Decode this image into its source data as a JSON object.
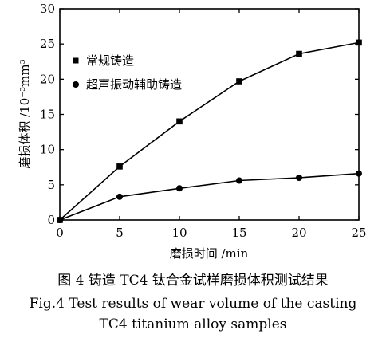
{
  "chart_data": {
    "type": "line",
    "xlabel": "磨损时间 /min",
    "ylabel": "磨损体积 /10⁻³mm³",
    "xlim": [
      0,
      25
    ],
    "ylim": [
      0,
      30
    ],
    "x_ticks": [
      0,
      5,
      10,
      15,
      20,
      25
    ],
    "y_ticks": [
      0,
      5,
      10,
      15,
      20,
      25,
      30
    ],
    "grid": false,
    "legend_position": "upper-left",
    "series": [
      {
        "name": "常规铸造",
        "marker": "square",
        "x": [
          0,
          5,
          10,
          15,
          20,
          25
        ],
        "y": [
          0,
          7.6,
          14.0,
          19.7,
          23.6,
          25.2
        ]
      },
      {
        "name": "超声振动辅助铸造",
        "marker": "circle",
        "x": [
          0,
          5,
          10,
          15,
          20,
          25
        ],
        "y": [
          0,
          3.3,
          4.5,
          5.6,
          6.0,
          6.6
        ]
      }
    ]
  },
  "caption": {
    "line1": "图 4  铸造 TC4 钛合金试样磨损体积测试结果",
    "line2": "Fig.4  Test results of wear volume of the casting",
    "line3": "TC4 titanium alloy samples"
  }
}
